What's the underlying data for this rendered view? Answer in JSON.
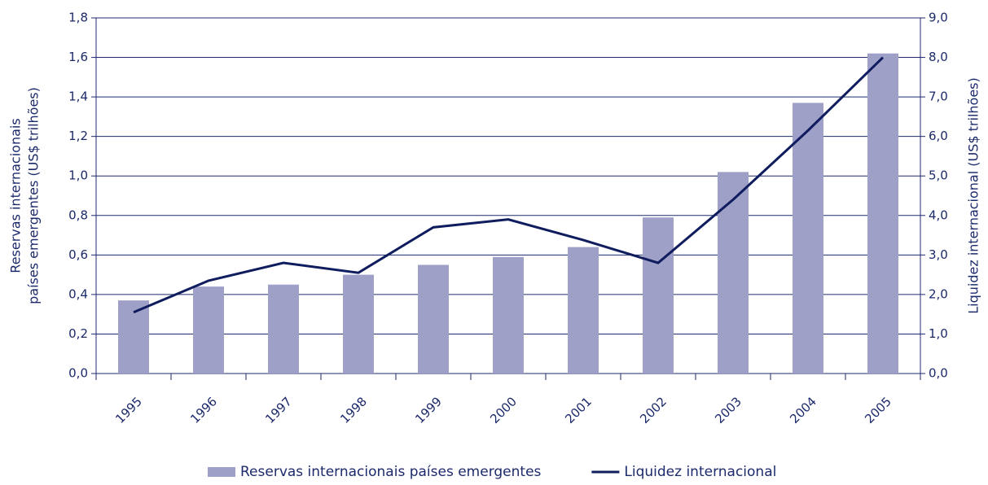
{
  "chart_data": {
    "type": "bar_line",
    "y_label": [
      "Reservas internacionais",
      "países emergentes (US$ trilhões)"
    ],
    "y2_label": "Liquidez internacional (US$ trilhões)",
    "categories": [
      "1995",
      "1996",
      "1997",
      "1998",
      "1999",
      "2000",
      "2001",
      "2002",
      "2003",
      "2004",
      "2005"
    ],
    "series": [
      {
        "name": "Reservas internacionais países emergentes",
        "type": "bar",
        "color": "#9ea0c7",
        "values": [
          0.37,
          0.44,
          0.45,
          0.5,
          0.55,
          0.59,
          0.64,
          0.79,
          1.02,
          1.37,
          1.62
        ]
      },
      {
        "name": "Liquidez internacional",
        "type": "line",
        "axis": "y2",
        "color": "#0f1c5e",
        "values": [
          1.55,
          2.35,
          2.8,
          2.55,
          3.7,
          3.9,
          3.38,
          2.8,
          4.4,
          6.15,
          8.0
        ]
      }
    ],
    "ylim": [
      0,
      1.8
    ],
    "yticks": [
      {
        "value": 0,
        "label": "0,0"
      },
      {
        "value": 0.2,
        "label": "0,2"
      },
      {
        "value": 0.4,
        "label": "0,4"
      },
      {
        "value": 0.6,
        "label": "0,6"
      },
      {
        "value": 0.8,
        "label": "0,8"
      },
      {
        "value": 1.0,
        "label": "1,0"
      },
      {
        "value": 1.2,
        "label": "1,2"
      },
      {
        "value": 1.4,
        "label": "1,4"
      },
      {
        "value": 1.6,
        "label": "1,6"
      },
      {
        "value": 1.8,
        "label": "1,8"
      }
    ],
    "y2lim": [
      0,
      9
    ],
    "y2ticks": [
      {
        "value": 0,
        "label": "0,0"
      },
      {
        "value": 1,
        "label": "1,0"
      },
      {
        "value": 2,
        "label": "2,0"
      },
      {
        "value": 3,
        "label": "3,0"
      },
      {
        "value": 4,
        "label": "4,0"
      },
      {
        "value": 5,
        "label": "5,0"
      },
      {
        "value": 6,
        "label": "6,0"
      },
      {
        "value": 7,
        "label": "7,0"
      },
      {
        "value": 8,
        "label": "8,0"
      },
      {
        "value": 9,
        "label": "9,0"
      }
    ],
    "grid": true,
    "legend": "bottom"
  }
}
